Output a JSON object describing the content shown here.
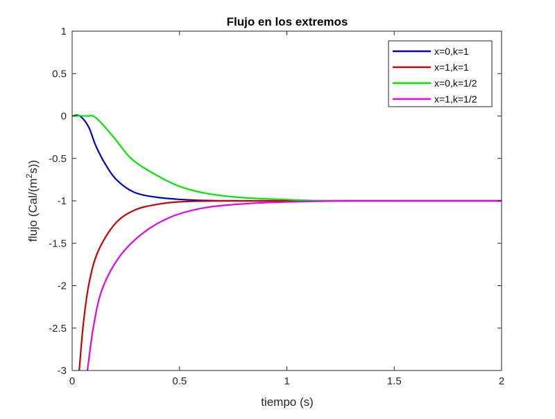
{
  "chart_data": {
    "type": "line",
    "title": "Flujo en los extremos",
    "xlabel": "tiempo (s)",
    "ylabel_parts": [
      "flujo (Cal/(m",
      "2",
      "s))"
    ],
    "xlim": [
      0,
      2
    ],
    "ylim": [
      -3,
      1
    ],
    "xticks": [
      0,
      0.5,
      1,
      1.5,
      2
    ],
    "xtick_labels": [
      "0",
      "0.5",
      "1",
      "1.5",
      "2"
    ],
    "yticks": [
      1,
      0.5,
      0,
      -0.5,
      -1,
      -1.5,
      -2,
      -2.5,
      -3
    ],
    "ytick_labels": [
      "1",
      "0.5",
      "0",
      "-0.5",
      "-1",
      "-1.5",
      "-2",
      "-2.5",
      "-3"
    ],
    "grid": false,
    "legend_position": "top-right",
    "series": [
      {
        "name": "x=0,k=1",
        "color": "#0000c8",
        "x": [
          0,
          0.036,
          0.077,
          0.11,
          0.155,
          0.21,
          0.29,
          0.4,
          0.55,
          0.7,
          1,
          1.5,
          2
        ],
        "y": [
          0,
          0,
          -0.13,
          -0.35,
          -0.57,
          -0.76,
          -0.9,
          -0.96,
          -0.99,
          -1,
          -1,
          -1,
          -1
        ]
      },
      {
        "name": "x=1,k=1",
        "color": "#c80000",
        "x": [
          0.033,
          0.052,
          0.078,
          0.12,
          0.2,
          0.29,
          0.4,
          0.51,
          0.7,
          1,
          1.5,
          2
        ],
        "y": [
          -3,
          -2.45,
          -1.98,
          -1.6,
          -1.27,
          -1.11,
          -1.04,
          -1.01,
          -1,
          -1,
          -1,
          -1
        ]
      },
      {
        "name": "x=0,k=1/2",
        "color": "#00e600",
        "x": [
          0,
          0.07,
          0.11,
          0.19,
          0.27,
          0.36,
          0.49,
          0.62,
          0.78,
          0.94,
          1.2,
          1.5,
          2
        ],
        "y": [
          0,
          0,
          -0.02,
          -0.24,
          -0.49,
          -0.65,
          -0.82,
          -0.91,
          -0.96,
          -0.98,
          -1,
          -1,
          -1
        ]
      },
      {
        "name": "x=1,k=1/2",
        "color": "#e600e6",
        "x": [
          0.071,
          0.1,
          0.14,
          0.22,
          0.33,
          0.46,
          0.62,
          0.83,
          1.05,
          1.3,
          1.6,
          2
        ],
        "y": [
          -3,
          -2.47,
          -2.04,
          -1.66,
          -1.38,
          -1.19,
          -1.08,
          -1.03,
          -1.01,
          -1,
          -1,
          -1
        ]
      }
    ]
  }
}
